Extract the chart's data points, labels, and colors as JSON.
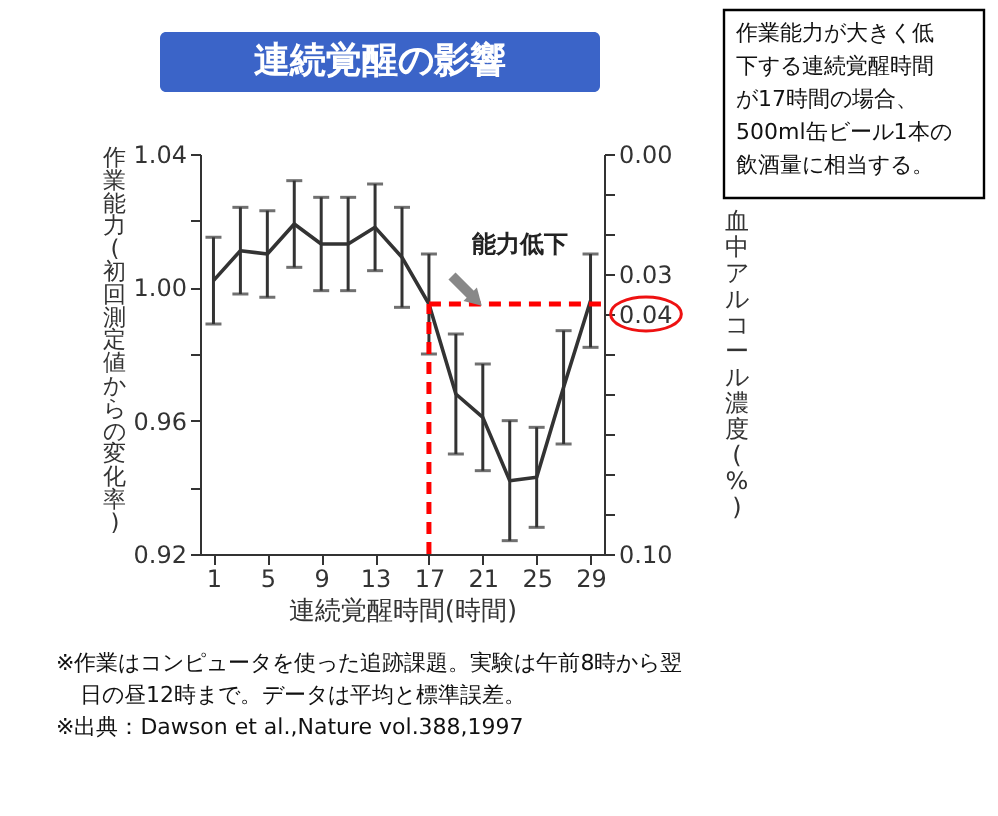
{
  "chart_data": {
    "type": "line",
    "title": "連続覚醒の影響",
    "x": [
      1,
      3,
      5,
      7,
      9,
      11,
      13,
      15,
      17,
      19,
      21,
      23,
      25,
      27,
      29
    ],
    "series": [
      {
        "color": "#333333",
        "values": [
          1.002,
          1.011,
          1.01,
          1.019,
          1.013,
          1.013,
          1.018,
          1.009,
          0.995,
          0.968,
          0.961,
          0.942,
          0.943,
          0.97,
          0.996
        ],
        "errors": [
          0.013,
          0.013,
          0.013,
          0.013,
          0.014,
          0.014,
          0.013,
          0.015,
          0.015,
          0.018,
          0.016,
          0.018,
          0.015,
          0.017,
          0.014
        ]
      }
    ],
    "xlim": [
      0,
      30
    ],
    "xticks": [
      1,
      5,
      9,
      13,
      17,
      21,
      25,
      29
    ],
    "ylim": [
      0.92,
      1.04
    ],
    "yticks": [
      {
        "value": 0.92,
        "label": "0.92"
      },
      {
        "value": 0.94,
        "label": null
      },
      {
        "value": 0.96,
        "label": "0.96"
      },
      {
        "value": 0.98,
        "label": null
      },
      {
        "value": 1.0,
        "label": "1.00"
      },
      {
        "value": 1.02,
        "label": null
      },
      {
        "value": 1.04,
        "label": "1.04"
      }
    ],
    "y2lim": [
      0.1,
      0.0
    ],
    "y2ticks": [
      {
        "value": 0.0,
        "label": "0.00"
      },
      {
        "value": 0.01,
        "label": null
      },
      {
        "value": 0.02,
        "label": null
      },
      {
        "value": 0.03,
        "label": "0.03"
      },
      {
        "value": 0.04,
        "label": "0.04"
      },
      {
        "value": 0.05,
        "label": null
      },
      {
        "value": 0.06,
        "label": null
      },
      {
        "value": 0.07,
        "label": null
      },
      {
        "value": 0.08,
        "label": null
      },
      {
        "value": 0.09,
        "label": null
      },
      {
        "value": 0.1,
        "label": "0.10"
      }
    ],
    "xlabel": "連続覚醒時間(時間)",
    "ylabel": "作業能力(初回測定値からの変化率)",
    "y2label": "血中アルコール濃度(%)",
    "ref_lines": [
      {
        "axis": "x",
        "value": 17,
        "color": "#ff0000",
        "line_style": "dashed"
      },
      {
        "axis": "y",
        "value": 0.995,
        "color": "#ff0000",
        "line_style": "dashed"
      }
    ],
    "annotations": [
      "能力低下",
      "作業能力が大きく低下する連続覚醒時間が17時間の場合、500ml缶ビール1本の飲酒量に相当する。",
      "※作業はコンピュータを使った追跡課題。実験は午前8時から翌日の昼12時まで。データは平均と標準誤差。",
      "※出典：Dawson et al.,Nature vol.388,1997"
    ],
    "grid": false,
    "marker": "none",
    "line_style": "solid"
  }
}
